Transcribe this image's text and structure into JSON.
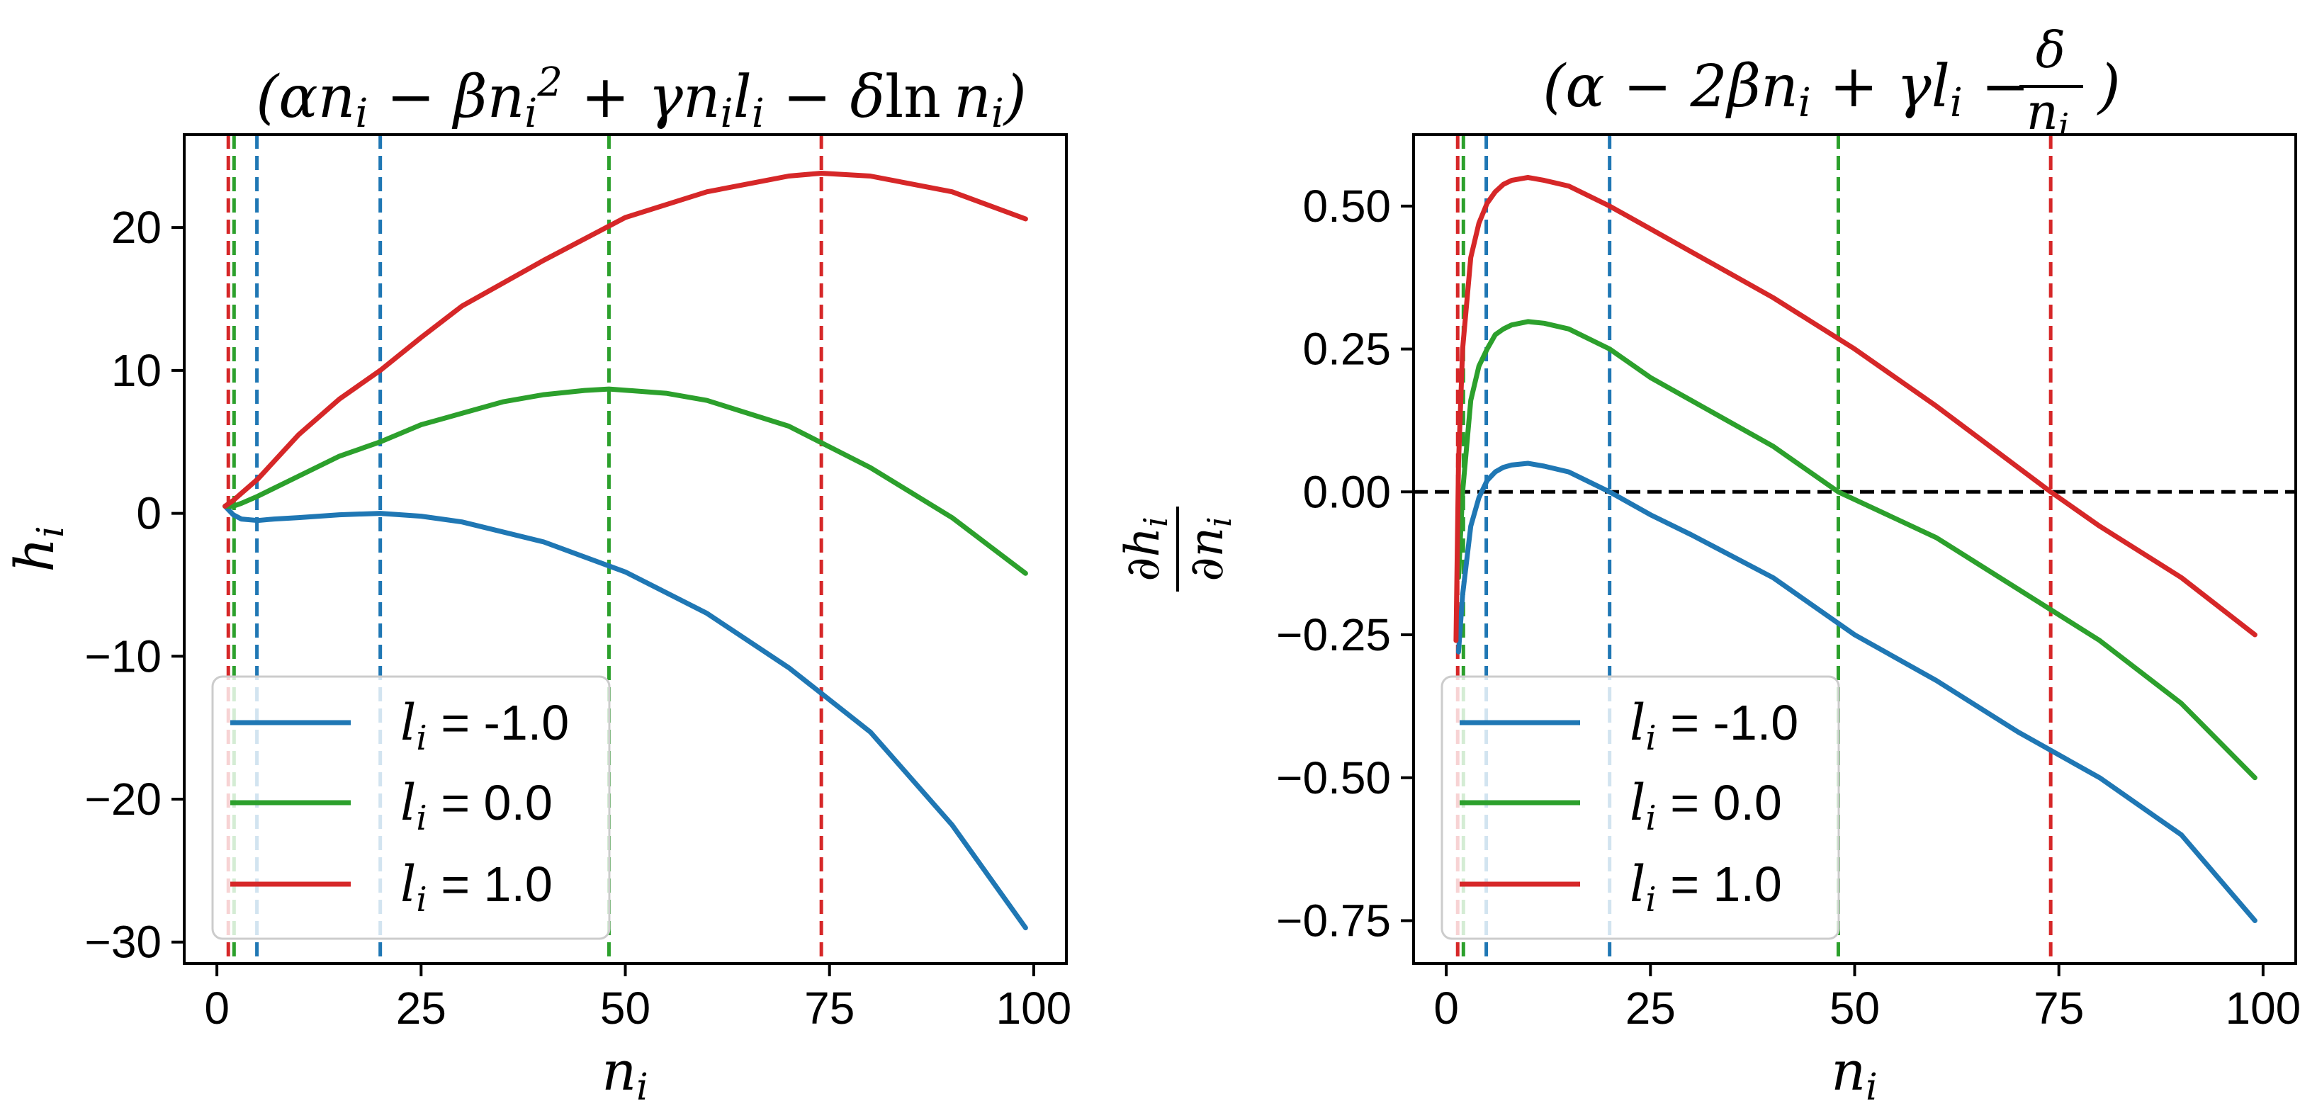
{
  "colors": {
    "blue": "#1f77b4",
    "green": "#2ca02c",
    "red": "#d62728",
    "black": "#000000"
  },
  "chart_data": [
    {
      "type": "line",
      "title": "(αn_i − βn_i² + γn_il_i − δ ln n_i)",
      "title_parts": {
        "open": "(",
        "alpha": "α",
        "n": "n",
        "sub": "i",
        "minus": " − ",
        "beta": "β",
        "sq": "2",
        "plus": " + ",
        "gamma": "γ",
        "l": "l",
        "delta": "δ",
        "ln": "ln",
        "close": ")"
      },
      "xlabel": "n_i",
      "xlabel_parts": {
        "main": "n",
        "sub": "i"
      },
      "ylabel": "h_i",
      "ylabel_parts": {
        "main": "h",
        "sub": "i"
      },
      "xlim": [
        -4,
        104
      ],
      "ylim": [
        -31.5,
        26.5
      ],
      "xticks": [
        0,
        25,
        50,
        75,
        100
      ],
      "yticks": [
        20,
        10,
        0,
        -10,
        -20,
        -30
      ],
      "ytick_labels": [
        "20",
        "10",
        "0",
        "−10",
        "−20",
        "−30"
      ],
      "series": [
        {
          "name": "l_i = -1.0",
          "legend": {
            "main": "l",
            "sub": "i",
            "rest": " = -1.0"
          },
          "color": "#1f77b4",
          "x": [
            1,
            2,
            3,
            5,
            7,
            10,
            15,
            20,
            25,
            30,
            40,
            50,
            60,
            70,
            80,
            90,
            99
          ],
          "y": [
            0.5,
            -0.1,
            -0.4,
            -0.5,
            -0.4,
            -0.3,
            -0.1,
            0.0,
            -0.2,
            -0.6,
            -2.0,
            -4.1,
            -7.0,
            -10.8,
            -15.3,
            -21.8,
            -29.0
          ],
          "vlines": [
            4.9,
            20.0
          ]
        },
        {
          "name": "l_i = 0.0",
          "legend": {
            "main": "l",
            "sub": "i",
            "rest": " = 0.0"
          },
          "color": "#2ca02c",
          "x": [
            1,
            2,
            3,
            5,
            10,
            15,
            20,
            25,
            30,
            35,
            40,
            45,
            48,
            55,
            60,
            70,
            80,
            90,
            99
          ],
          "y": [
            0.5,
            0.5,
            0.7,
            1.2,
            2.6,
            4.0,
            5.0,
            6.2,
            7.0,
            7.8,
            8.3,
            8.6,
            8.7,
            8.4,
            7.9,
            6.1,
            3.2,
            -0.3,
            -4.2
          ],
          "vlines": [
            2.1,
            48.0
          ]
        },
        {
          "name": "l_i = 1.0",
          "legend": {
            "main": "l",
            "sub": "i",
            "rest": " = 1.0"
          },
          "color": "#d62728",
          "x": [
            1,
            2,
            3,
            5,
            10,
            15,
            20,
            25,
            30,
            40,
            50,
            60,
            70,
            74,
            80,
            90,
            99
          ],
          "y": [
            0.5,
            0.9,
            1.4,
            2.4,
            5.5,
            8.0,
            10.0,
            12.3,
            14.5,
            17.7,
            20.7,
            22.5,
            23.6,
            23.8,
            23.6,
            22.5,
            20.6
          ],
          "vlines": [
            1.4,
            74.0
          ]
        }
      ],
      "hline": null,
      "legend_position": "lower-left"
    },
    {
      "type": "line",
      "title": "(α − 2βn_i + γl_i − δ/n_i)",
      "title_parts": {
        "open": "(",
        "alpha": "α",
        "minus": " − ",
        "two_beta": "2β",
        "n": "n",
        "sub": "i",
        "plus": " + ",
        "gamma": "γ",
        "l": "l",
        "delta": "δ",
        "close": ")"
      },
      "xlabel": "n_i",
      "xlabel_parts": {
        "main": "n",
        "sub": "i"
      },
      "ylabel": "∂h_i/∂n_i",
      "ylabel_parts": {
        "d": "∂",
        "h": "h",
        "n": "n",
        "sub": "i"
      },
      "xlim": [
        -4,
        104
      ],
      "ylim": [
        -0.825,
        0.625
      ],
      "xticks": [
        0,
        25,
        50,
        75,
        100
      ],
      "yticks": [
        0.5,
        0.25,
        0.0,
        -0.25,
        -0.5,
        -0.75
      ],
      "ytick_labels": [
        "0.50",
        "0.25",
        "0.00",
        "−0.25",
        "−0.50",
        "−0.75"
      ],
      "series": [
        {
          "name": "l_i = -1.0",
          "legend": {
            "main": "l",
            "sub": "i",
            "rest": " = -1.0"
          },
          "color": "#1f77b4",
          "x": [
            1.5,
            2,
            3,
            4,
            5,
            6,
            7,
            8,
            10,
            12,
            15,
            20,
            25,
            30,
            40,
            50,
            60,
            70,
            80,
            90,
            99
          ],
          "y": [
            -0.28,
            -0.18,
            -0.06,
            -0.01,
            0.02,
            0.035,
            0.043,
            0.047,
            0.05,
            0.045,
            0.035,
            0.0,
            -0.04,
            -0.075,
            -0.15,
            -0.25,
            -0.33,
            -0.42,
            -0.5,
            -0.6,
            -0.75
          ],
          "vlines": [
            4.9,
            20.0
          ]
        },
        {
          "name": "l_i = 0.0",
          "legend": {
            "main": "l",
            "sub": "i",
            "rest": " = 0.0"
          },
          "color": "#2ca02c",
          "x": [
            1.5,
            2,
            3,
            4,
            5,
            6,
            7,
            8,
            10,
            12,
            15,
            20,
            25,
            30,
            40,
            48,
            60,
            70,
            80,
            90,
            99
          ],
          "y": [
            -0.15,
            0.0,
            0.16,
            0.22,
            0.25,
            0.275,
            0.285,
            0.292,
            0.298,
            0.295,
            0.285,
            0.25,
            0.2,
            0.16,
            0.08,
            0.0,
            -0.08,
            -0.17,
            -0.26,
            -0.37,
            -0.5
          ],
          "vlines": [
            2.1,
            48.0
          ]
        },
        {
          "name": "l_i = 1.0",
          "legend": {
            "main": "l",
            "sub": "i",
            "rest": " = 1.0"
          },
          "color": "#d62728",
          "x": [
            1.2,
            1.5,
            2,
            3,
            4,
            5,
            6,
            7,
            8,
            10,
            12,
            15,
            20,
            25,
            30,
            40,
            50,
            60,
            74,
            80,
            90,
            99
          ],
          "y": [
            -0.26,
            0.05,
            0.25,
            0.41,
            0.47,
            0.505,
            0.525,
            0.538,
            0.545,
            0.55,
            0.545,
            0.535,
            0.5,
            0.46,
            0.42,
            0.34,
            0.25,
            0.15,
            0.0,
            -0.06,
            -0.15,
            -0.25
          ],
          "vlines": [
            1.4,
            74.0
          ]
        }
      ],
      "hline": {
        "y": 0,
        "color": "#000000"
      },
      "legend_position": "lower-left"
    }
  ]
}
